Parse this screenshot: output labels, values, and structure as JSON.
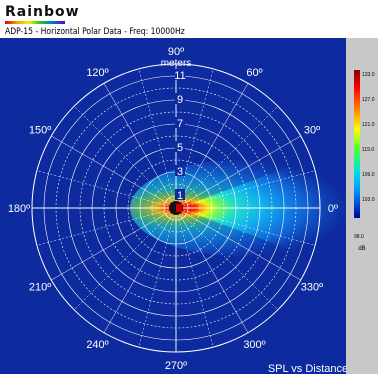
{
  "header": {
    "logo_text": "Rainbow",
    "title": "ADP-15 - Horizontal Polar Data   -   Freq: 10000Hz"
  },
  "chart_data": {
    "type": "polar-heatmap",
    "radial_axis": {
      "label": "meters",
      "ticks": [
        1,
        3,
        5,
        7,
        9,
        11
      ]
    },
    "angle_labels": [
      {
        "deg": 0,
        "text": "0º"
      },
      {
        "deg": 30,
        "text": "30º"
      },
      {
        "deg": 60,
        "text": "60º"
      },
      {
        "deg": 90,
        "text": "90º"
      },
      {
        "deg": 120,
        "text": "120º"
      },
      {
        "deg": 150,
        "text": "150º"
      },
      {
        "deg": 180,
        "text": "180º"
      },
      {
        "deg": 210,
        "text": "210º"
      },
      {
        "deg": 240,
        "text": "240º"
      },
      {
        "deg": 270,
        "text": "270º"
      },
      {
        "deg": 300,
        "text": "300º"
      },
      {
        "deg": 330,
        "text": "330º"
      }
    ],
    "bottom_caption": "SPL vs Distance",
    "colorbar": {
      "unit": "dB",
      "ticks": [
        "133.0",
        "127.0",
        "121.0",
        "115.0",
        "109.0",
        "103.0",
        "98.0"
      ],
      "min": 98.0,
      "max": 133.0
    },
    "beam_direction_deg": 0,
    "colors": {
      "background": "#0d2a9e",
      "grid": "#ffffff"
    }
  }
}
